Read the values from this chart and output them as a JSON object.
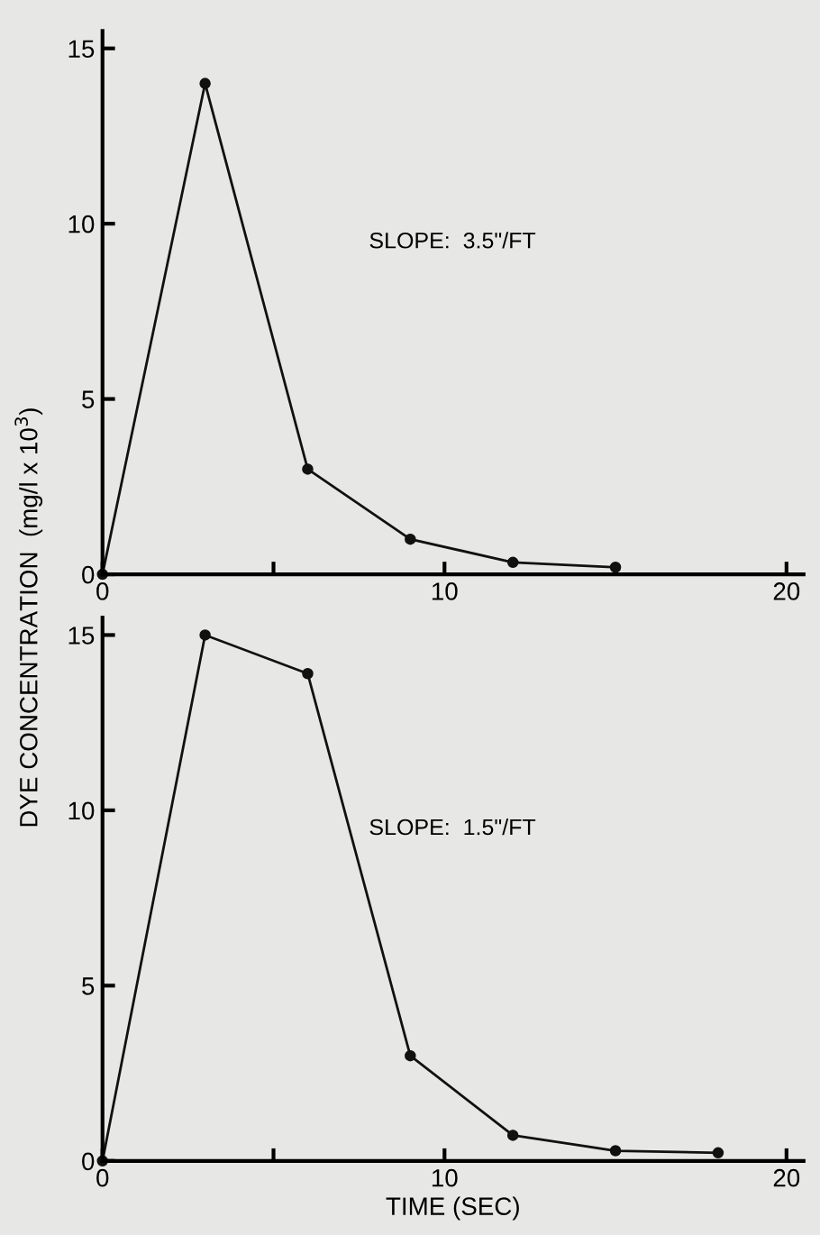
{
  "chart_data": [
    {
      "type": "line",
      "ylabel": "DYE CONCENTRATION  (mg/l x 10$^{3}$)",
      "annotations": [
        "SLOPE:  3.5\"/FT"
      ],
      "x": [
        0,
        3,
        6,
        9,
        12,
        15
      ],
      "series": [
        {
          "color": "#111111",
          "values": [
            0,
            14,
            3,
            1,
            0.34,
            0.2
          ]
        }
      ],
      "xlim": [
        0,
        20.5
      ],
      "xticks": [
        0,
        {
          "value": 5,
          "label": null
        },
        10,
        20
      ],
      "ylim": [
        0,
        15.5
      ],
      "yticks": [
        0,
        5,
        10,
        15
      ],
      "marker": "circle",
      "line_style": "solid",
      "grid": false,
      "legend": false
    },
    {
      "type": "line",
      "xlabel": "TIME (SEC)",
      "annotations": [
        "SLOPE:  1.5\"/FT"
      ],
      "x": [
        0,
        3,
        6,
        9,
        12,
        15,
        18
      ],
      "series": [
        {
          "color": "#111111",
          "values": [
            0,
            15,
            13.9,
            3,
            0.73,
            0.29,
            0.23
          ]
        }
      ],
      "xlim": [
        0,
        20.5
      ],
      "xticks": [
        0,
        {
          "value": 5,
          "label": null
        },
        10,
        20
      ],
      "ylim": [
        0,
        15.5
      ],
      "yticks": [
        0,
        5,
        10,
        15
      ],
      "marker": "circle",
      "line_style": "solid",
      "grid": false,
      "legend": false
    }
  ]
}
